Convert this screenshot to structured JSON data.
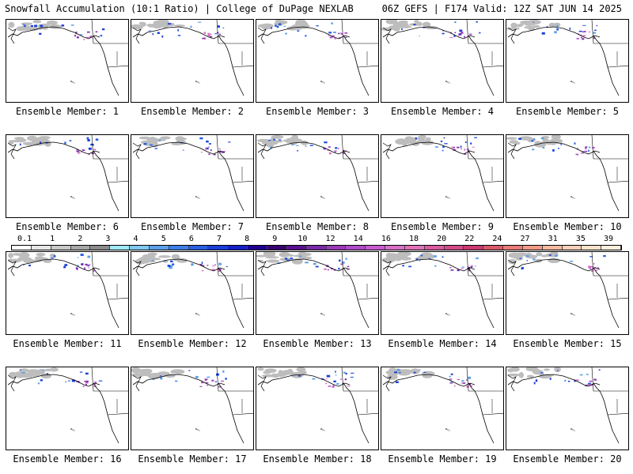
{
  "header": {
    "left": "Snowfall Accumulation (10:1 Ratio) | College of DuPage NEXLAB",
    "right": "06Z GEFS | F174 Valid: 12Z SAT JUN 14 2025"
  },
  "panels": [
    {
      "label": "Ensemble Member: 1"
    },
    {
      "label": "Ensemble Member: 2"
    },
    {
      "label": "Ensemble Member: 3"
    },
    {
      "label": "Ensemble Member: 4"
    },
    {
      "label": "Ensemble Member: 5"
    },
    {
      "label": "Ensemble Member: 6"
    },
    {
      "label": "Ensemble Member: 7"
    },
    {
      "label": "Ensemble Member: 8"
    },
    {
      "label": "Ensemble Member: 9"
    },
    {
      "label": "Ensemble Member: 10"
    },
    {
      "label": "Ensemble Member: 11"
    },
    {
      "label": "Ensemble Member: 12"
    },
    {
      "label": "Ensemble Member: 13"
    },
    {
      "label": "Ensemble Member: 14"
    },
    {
      "label": "Ensemble Member: 15"
    },
    {
      "label": "Ensemble Member: 16"
    },
    {
      "label": "Ensemble Member: 17"
    },
    {
      "label": "Ensemble Member: 18"
    },
    {
      "label": "Ensemble Member: 19"
    },
    {
      "label": "Ensemble Member: 20"
    }
  ],
  "legend": {
    "labels": [
      "0.1",
      "1",
      "2",
      "3",
      "4",
      "5",
      "6",
      "7",
      "8",
      "9",
      "10",
      "12",
      "14",
      "16",
      "18",
      "20",
      "22",
      "24",
      "27",
      "31",
      "35",
      "39"
    ],
    "colors": [
      "#ffffff",
      "#e6e6e6",
      "#c8c8c8",
      "#a6a6a6",
      "#8a8a8a",
      "#9fe8f5",
      "#7fc8f0",
      "#5aa0e8",
      "#3f7ee6",
      "#2a5fe0",
      "#1a3fd8",
      "#1420c8",
      "#200090",
      "#3a0070",
      "#5a1090",
      "#7a2aa8",
      "#9a3ab8",
      "#b04ac8",
      "#c85ad0",
      "#d870c8",
      "#e070b8",
      "#d85aa0",
      "#d04a88",
      "#c83a70",
      "#d85a6a",
      "#e87a78",
      "#f09a88",
      "#f5b8a0",
      "#f8d0b8",
      "#fae2cc",
      "#fcefdc"
    ]
  }
}
